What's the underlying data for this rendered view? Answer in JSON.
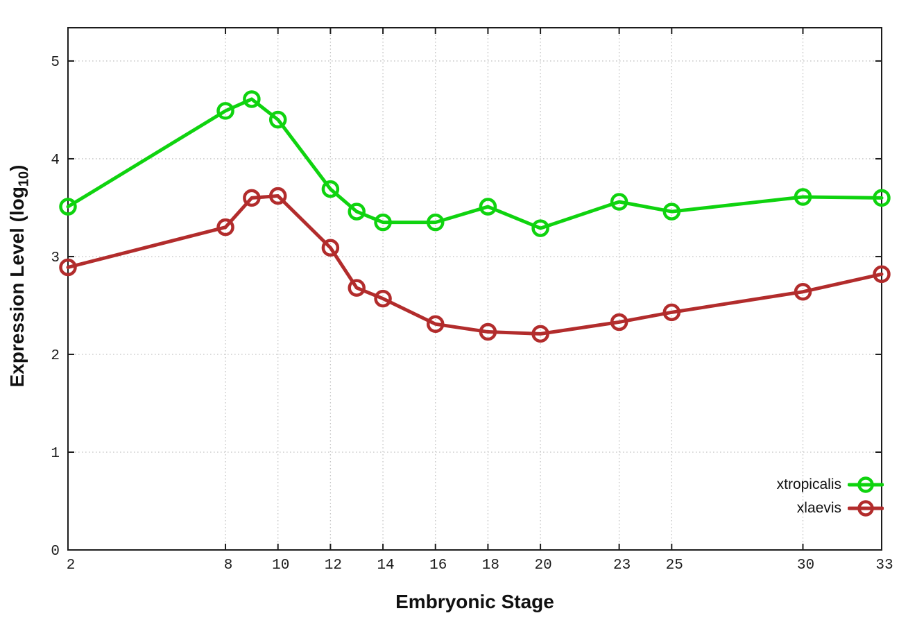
{
  "chart_data": {
    "type": "line",
    "title": "",
    "xlabel": "Embryonic Stage",
    "ylabel": "Expression Level (log10)",
    "ylabel_parts": {
      "prefix": "Expression Level (log",
      "sub": "10",
      "suffix": ")"
    },
    "x": [
      2,
      8,
      9,
      10,
      12,
      13,
      14,
      16,
      18,
      20,
      23,
      25,
      30,
      33
    ],
    "x_tick_values": [
      2,
      8,
      10,
      12,
      14,
      16,
      18,
      20,
      23,
      25,
      30,
      33
    ],
    "x_tick_labels": [
      "2",
      "8",
      "10",
      "12",
      "14",
      "16",
      "18",
      "20",
      "23",
      "25",
      "30",
      "33"
    ],
    "y_ticks": [
      0,
      1,
      2,
      3,
      4,
      5
    ],
    "y_tick_labels": [
      "0",
      "1",
      "2",
      "3",
      "4",
      "5"
    ],
    "xlim": [
      2,
      33
    ],
    "ylim": [
      0,
      5.34
    ],
    "grid": true,
    "legend_position": "inside-bottom-right",
    "series": [
      {
        "name": "xtropicalis",
        "color": "#0fd30f",
        "marker": "open-circle",
        "values": [
          3.51,
          4.49,
          4.61,
          4.4,
          3.69,
          3.46,
          3.35,
          3.35,
          3.51,
          3.29,
          3.56,
          3.46,
          3.61,
          3.6
        ]
      },
      {
        "name": "xlaevis",
        "color": "#b22c2c",
        "marker": "open-circle",
        "values": [
          2.89,
          3.3,
          3.6,
          3.62,
          3.09,
          2.68,
          2.57,
          2.31,
          2.23,
          2.21,
          2.33,
          2.43,
          2.64,
          2.82
        ]
      }
    ],
    "colors": {
      "frame": "#1c1c1c",
      "grid": "#c4c4c4",
      "tick_text": "#1c1c1c"
    }
  }
}
